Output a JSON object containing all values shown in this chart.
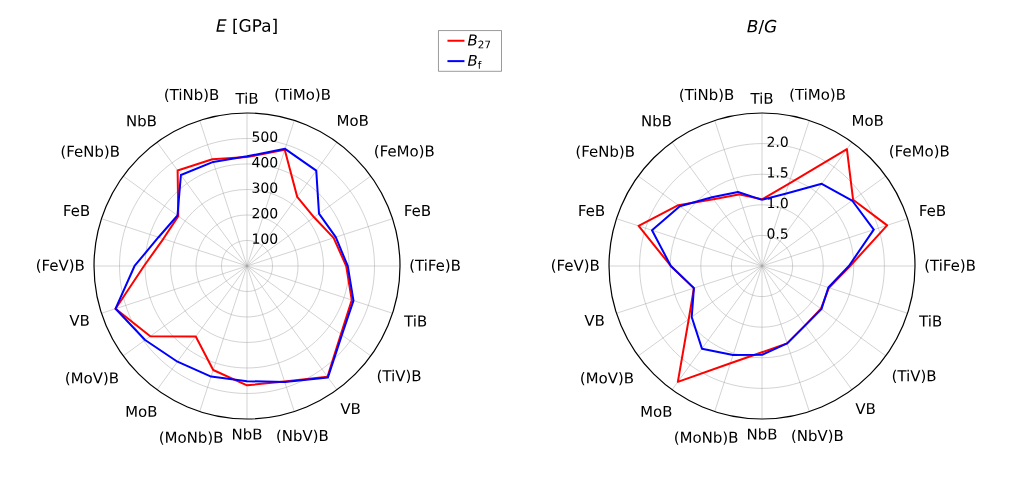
{
  "chart_data": [
    {
      "type": "radar",
      "title": "*E* [GPa]",
      "categories": [
        "TiB",
        "(TiMo)B",
        "MoB",
        "(FeMo)B",
        "FeB",
        "(TiFe)B",
        "TiB",
        "(TiV)B",
        "VB",
        "(NbV)B",
        "NbB",
        "(MoNb)B",
        "MoB",
        "(MoV)B",
        "VB",
        "(FeV)B",
        "FeB",
        "(FeNb)B",
        "NbB",
        "(TiNb)B"
      ],
      "ylim": [
        0,
        600
      ],
      "yticks": [
        100,
        200,
        300,
        400,
        500
      ],
      "grid": true,
      "legend": "top right",
      "series": [
        {
          "name": "*B*$_{27}$",
          "color": "#ff0000",
          "values": [
            427,
            479,
            335,
            325,
            357,
            389,
            432,
            455,
            537,
            476,
            468,
            429,
            342,
            469,
            542,
            404,
            345,
            333,
            463,
            440
          ]
        },
        {
          "name": "*B*$_{f}$",
          "color": "#0000ff",
          "values": [
            430,
            483,
            462,
            349,
            366,
            395,
            439,
            460,
            540,
            478,
            452,
            456,
            464,
            494,
            542,
            441,
            365,
            337,
            441,
            429
          ]
        }
      ]
    },
    {
      "type": "radar",
      "title": "*B*/*G*",
      "categories": [
        "TiB",
        "(TiMo)B",
        "MoB",
        "(FeMo)B",
        "FeB",
        "(TiFe)B",
        "TiB",
        "(TiV)B",
        "VB",
        "(NbV)B",
        "NbB",
        "(MoNb)B",
        "MoB",
        "(MoV)B",
        "VB",
        "(FeV)B",
        "FeB",
        "(FeNb)B",
        "NbB",
        "(TiNb)B"
      ],
      "ylim": [
        0,
        2.5
      ],
      "yticks": [
        0.5,
        {
          "value": 1,
          "label": "1.0"
        },
        1.5,
        {
          "value": 2,
          "label": "2.0"
        }
      ],
      "grid": true,
      "series": [
        {
          "color": "#ff0000",
          "values": [
            1.09,
            1.41,
            2.36,
            1.84,
            2.15,
            1.44,
            1.15,
            1.19,
            1.2,
            1.33,
            1.41,
            1.67,
            2.34,
            1.48,
            1.17,
            1.49,
            2.12,
            1.69,
            1.35,
            1.23
          ]
        },
        {
          "color": "#0000ff",
          "values": [
            1.08,
            1.24,
            1.66,
            1.82,
            1.92,
            1.42,
            1.14,
            1.2,
            1.2,
            1.33,
            1.45,
            1.53,
            1.67,
            1.42,
            1.17,
            1.49,
            1.89,
            1.66,
            1.39,
            1.27
          ]
        }
      ]
    }
  ]
}
